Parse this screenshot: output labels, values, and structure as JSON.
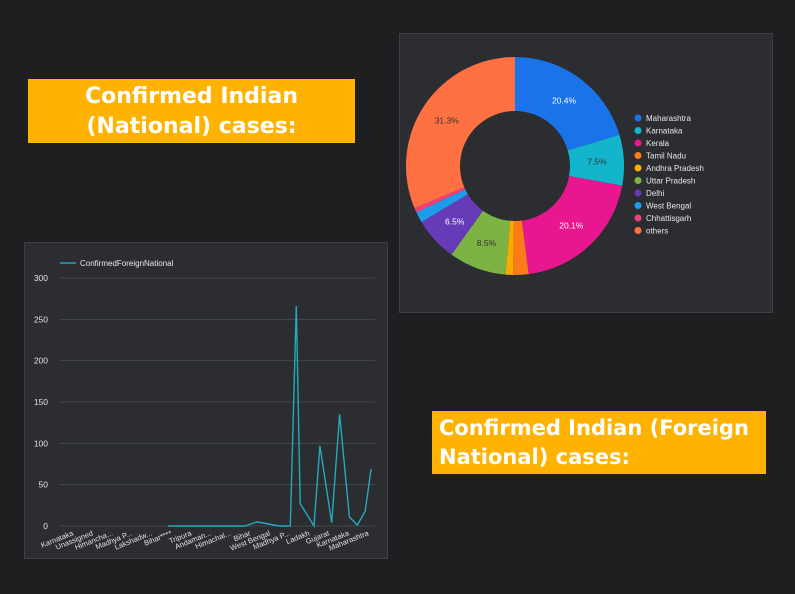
{
  "titles": {
    "national_line1": "Confirmed Indian",
    "national_line2": "(National) cases:",
    "foreign_line1": "Confirmed Indian (Foreign",
    "foreign_line2": "National) cases:"
  },
  "colors": {
    "background": "#1f1f22",
    "title_bg": "#ffb300",
    "panel_bg": "#2b2d31",
    "line_series": "#26a9bf"
  },
  "chart_data": [
    {
      "type": "pie",
      "variant": "donut",
      "title": "",
      "legend_position": "right",
      "slices": [
        {
          "label": "Maharashtra",
          "value": 20.4,
          "color": "#1a73e8",
          "show_label": true,
          "label_text": "20.4%"
        },
        {
          "label": "Karnataka",
          "value": 7.5,
          "color": "#12b5cb",
          "show_label": true,
          "label_text": "7.5%"
        },
        {
          "label": "Kerala",
          "value": 20.1,
          "color": "#e8168f",
          "show_label": true,
          "label_text": "20.1%"
        },
        {
          "label": "Tamil Nadu",
          "value": 2.3,
          "color": "#fa7b17",
          "show_label": false,
          "label_text": ""
        },
        {
          "label": "Andhra Pradesh",
          "value": 1.1,
          "color": "#f9ab00",
          "show_label": false,
          "label_text": ""
        },
        {
          "label": "Uttar Pradesh",
          "value": 8.5,
          "color": "#7cb342",
          "show_label": true,
          "label_text": "8.5%"
        },
        {
          "label": "Delhi",
          "value": 6.5,
          "color": "#673ab7",
          "show_label": true,
          "label_text": "6.5%"
        },
        {
          "label": "West Bengal",
          "value": 1.6,
          "color": "#1e9be9",
          "show_label": false,
          "label_text": ""
        },
        {
          "label": "Chhattisgarh",
          "value": 0.7,
          "color": "#ec407a",
          "show_label": false,
          "label_text": ""
        },
        {
          "label": "others",
          "value": 31.3,
          "color": "#ff7043",
          "show_label": true,
          "label_text": "31.3%"
        }
      ]
    },
    {
      "type": "line",
      "title": "",
      "xlabel": "",
      "ylabel": "",
      "ylim": [
        0,
        300
      ],
      "yticks": [
        0,
        50,
        100,
        150,
        200,
        250,
        300
      ],
      "grid": true,
      "legend_position": "top-left",
      "categories": [
        "Karnataka",
        "Unassigned",
        "Himancha...",
        "Madhya P...",
        "Lakshadw...",
        "Bihar****",
        "Tripura",
        "Andaman...",
        "Himachal...",
        "Bihar",
        "West Bengal",
        "Madhya P...",
        "Ladakh",
        "Gujarat",
        "Karnataka",
        "Maharashtra"
      ],
      "series": [
        {
          "name": "ConfirmedForeignNational",
          "color": "#26a9bf",
          "x": [
            0.5,
            5.0,
            5.5,
            7.1,
            7.3,
            7.7,
            8.6,
            9.4,
            10.0,
            11.15,
            11.4,
            11.7,
            12.0,
            12.2,
            12.9,
            13.2,
            13.8,
            14.2,
            14.7,
            15.1,
            15.5,
            15.8
          ],
          "values": [
            null,
            null,
            0,
            0,
            0,
            0,
            0,
            0,
            5,
            0,
            0,
            0,
            266,
            27,
            0,
            97,
            4,
            135,
            11,
            1,
            18,
            69
          ]
        }
      ]
    }
  ]
}
